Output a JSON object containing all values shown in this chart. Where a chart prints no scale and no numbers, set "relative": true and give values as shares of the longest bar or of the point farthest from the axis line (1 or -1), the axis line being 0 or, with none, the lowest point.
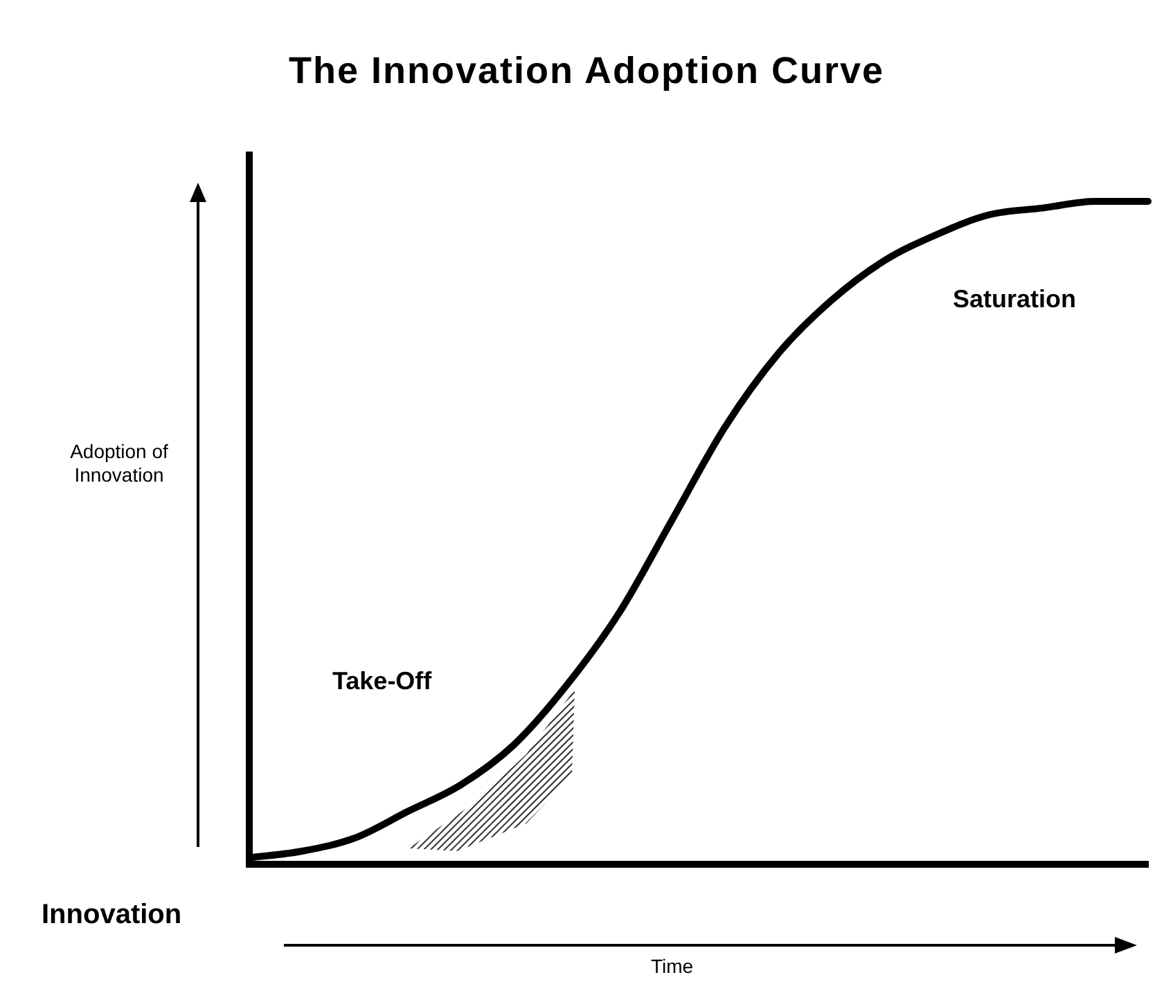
{
  "chart_data": {
    "type": "line",
    "title": "The Innovation Adoption Curve",
    "xlabel": "Time",
    "ylabel": "Adoption of Innovation",
    "relative": true,
    "categories": [
      null,
      null,
      null,
      null,
      null,
      null,
      null,
      null,
      null,
      null,
      null,
      null,
      null,
      null,
      null,
      null,
      null,
      null
    ],
    "series": [
      {
        "color": "#000000",
        "values": [
          0.01,
          0.02,
          0.04,
          0.08,
          0.12,
          0.18,
          0.27,
          0.38,
          0.52,
          0.66,
          0.77,
          0.85,
          0.91,
          0.95,
          0.98,
          0.99,
          1.0,
          1.0
        ]
      }
    ],
    "annotations": [
      "Innovation",
      "Take-Off",
      "Saturation"
    ],
    "legend": false,
    "grid": false,
    "marker": "none",
    "line_style": "solid"
  }
}
